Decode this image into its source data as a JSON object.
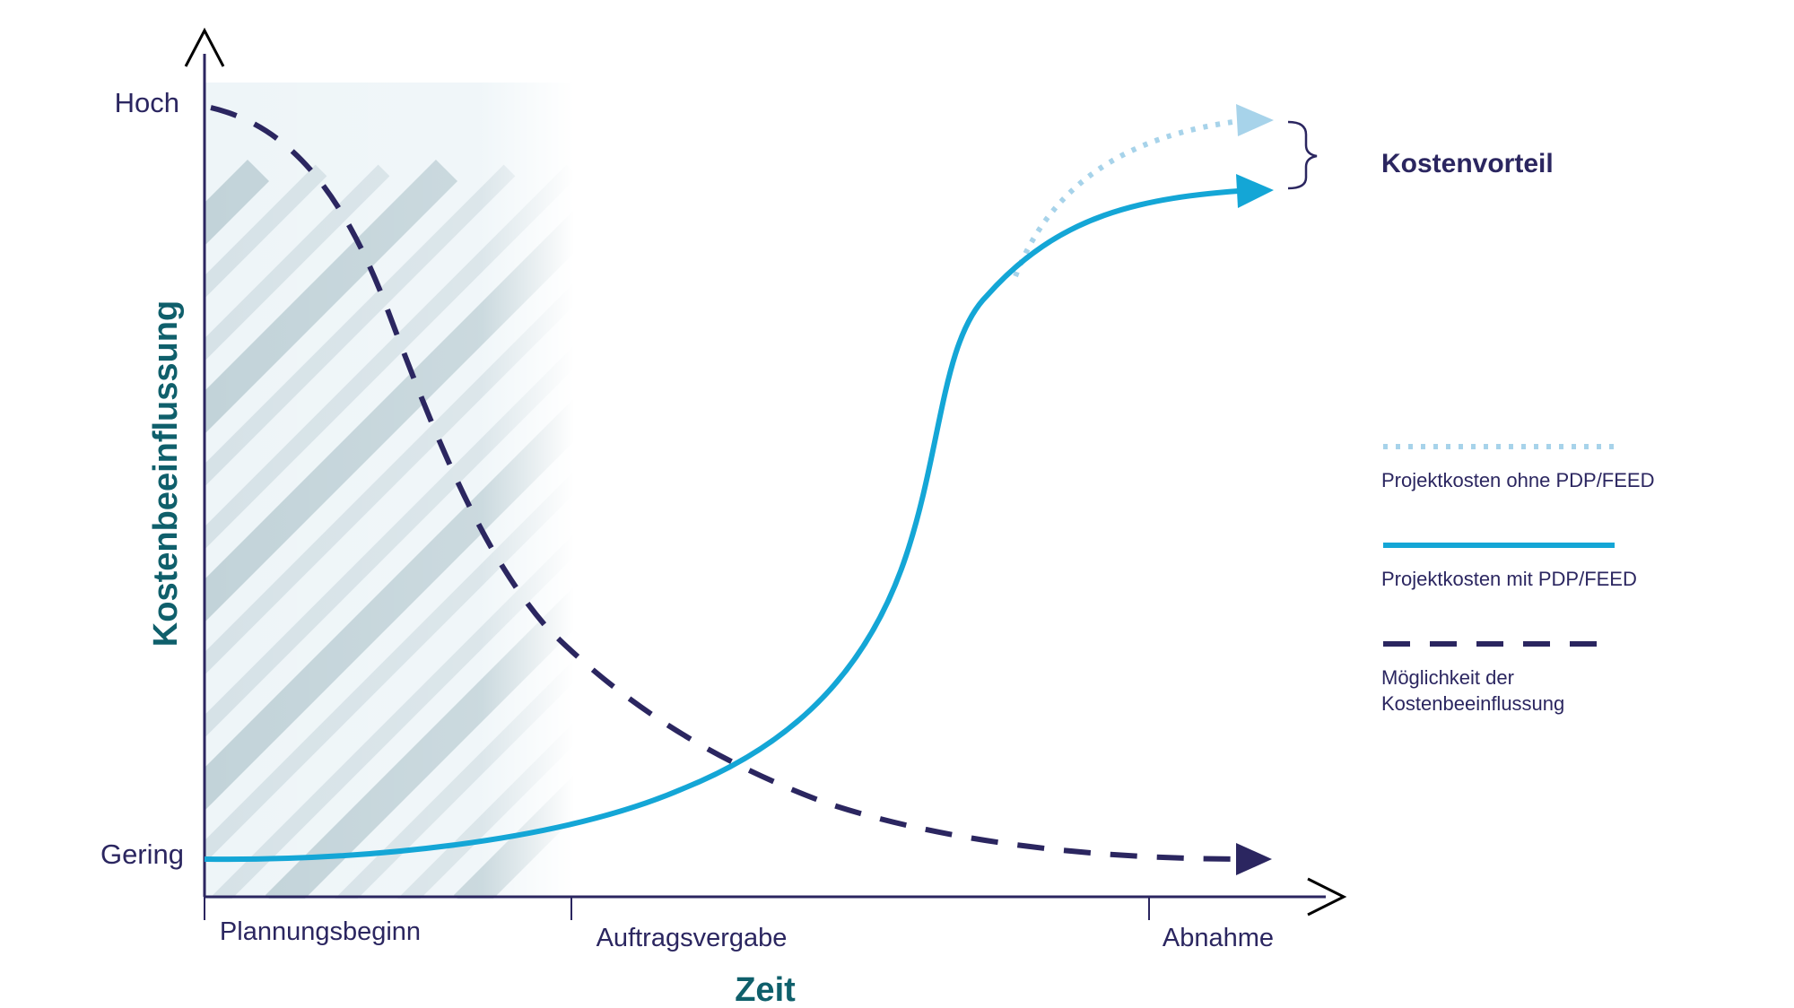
{
  "y_axis": {
    "title": "Kostenbeeinflussung",
    "high_label": "Hoch",
    "low_label": "Gering"
  },
  "x_axis": {
    "title": "Zeit",
    "milestones": [
      "Plannungsbeginn",
      "Auftragsvergabe",
      "Abnahme"
    ]
  },
  "annotation": {
    "label": "Kostenvorteil"
  },
  "legend": [
    {
      "key": "ohne",
      "style": "dotted",
      "color": "#a7d3ea",
      "lines": [
        "Projektkosten ohne PDP/FEED"
      ]
    },
    {
      "key": "mit",
      "style": "solid",
      "color": "#14a6d6",
      "lines": [
        "Projektkosten mit PDP/FEED"
      ]
    },
    {
      "key": "moeglichkeit",
      "style": "dashed",
      "color": "#2b2660",
      "lines": [
        "Möglichkeit der",
        "Kostenbeeinflussung"
      ]
    }
  ],
  "colors": {
    "axis": "#2b2660",
    "axis_title": "#0f5f6b",
    "label_text": "#2b2660",
    "curve_with_feed": "#14a6d6",
    "curve_without_feed": "#a7d3ea",
    "influence_curve": "#2b2660",
    "hatch": "#9fb6bf"
  }
}
